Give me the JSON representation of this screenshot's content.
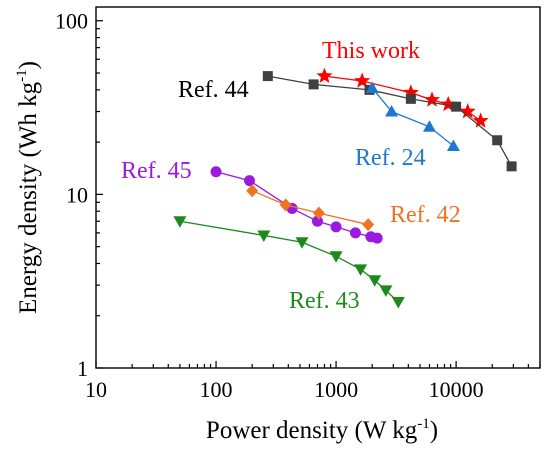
{
  "chart_data": {
    "type": "scatter",
    "xscale": "log",
    "yscale": "log",
    "xlim": [
      10,
      50000
    ],
    "ylim": [
      1,
      120
    ],
    "xlabel": "Power density (W kg",
    "xlabel_sup": "-1",
    "xlabel_close": ")",
    "ylabel": "Energy density (Wh kg",
    "ylabel_sup": "-1",
    "ylabel_close": ")",
    "xticks": [
      10,
      100,
      1000,
      10000
    ],
    "xtick_labels": [
      "10",
      "100",
      "1000",
      "10000"
    ],
    "yticks": [
      1,
      10,
      100
    ],
    "ytick_labels": [
      "1",
      "10",
      "100"
    ],
    "grid": false,
    "legend": "none (labels placed next to each series)",
    "series": [
      {
        "name": "This work",
        "color": "#ff0000",
        "marker": "star",
        "x": [
          800,
          1650,
          4200,
          6300,
          8600,
          12500,
          16000
        ],
        "y": [
          48,
          45,
          38.5,
          35,
          33,
          30,
          26.5
        ]
      },
      {
        "name": "Ref. 44",
        "color": "#404040",
        "marker": "square",
        "x": [
          270,
          650,
          1900,
          4200,
          10000,
          22000,
          29000
        ],
        "y": [
          48,
          43,
          40,
          35.5,
          32,
          20.5,
          14.5
        ]
      },
      {
        "name": "Ref. 24",
        "color": "#1e78d0",
        "marker": "triangle-up",
        "x": [
          2000,
          2900,
          6000,
          9500
        ],
        "y": [
          41,
          30,
          24.5,
          19
        ]
      },
      {
        "name": "Ref. 45",
        "color": "#9a1ae0",
        "marker": "circle",
        "x": [
          100,
          190,
          430,
          700,
          1000,
          1450,
          1950,
          2200
        ],
        "y": [
          13.5,
          12,
          8.3,
          7,
          6.5,
          6,
          5.7,
          5.6
        ]
      },
      {
        "name": "Ref. 42",
        "color": "#ee7322",
        "marker": "diamond",
        "x": [
          200,
          380,
          720,
          1850
        ],
        "y": [
          10.5,
          8.7,
          7.8,
          6.7
        ]
      },
      {
        "name": "Ref. 43",
        "color": "#1d8a1d",
        "marker": "triangle-down",
        "x": [
          50,
          250,
          520,
          1000,
          1600,
          2100,
          2600,
          3300
        ],
        "y": [
          7,
          5.8,
          5.3,
          4.4,
          3.7,
          3.2,
          2.8,
          2.4
        ]
      }
    ],
    "annotations": [
      {
        "text": "This work",
        "color": "#ff0000"
      },
      {
        "text": "Ref. 44",
        "color": "#000000"
      },
      {
        "text": "Ref. 24",
        "color": "#1e78d0"
      },
      {
        "text": "Ref. 45",
        "color": "#9a1ae0"
      },
      {
        "text": "Ref. 42",
        "color": "#ee7322"
      },
      {
        "text": "Ref. 43",
        "color": "#1d8a1d"
      }
    ]
  }
}
